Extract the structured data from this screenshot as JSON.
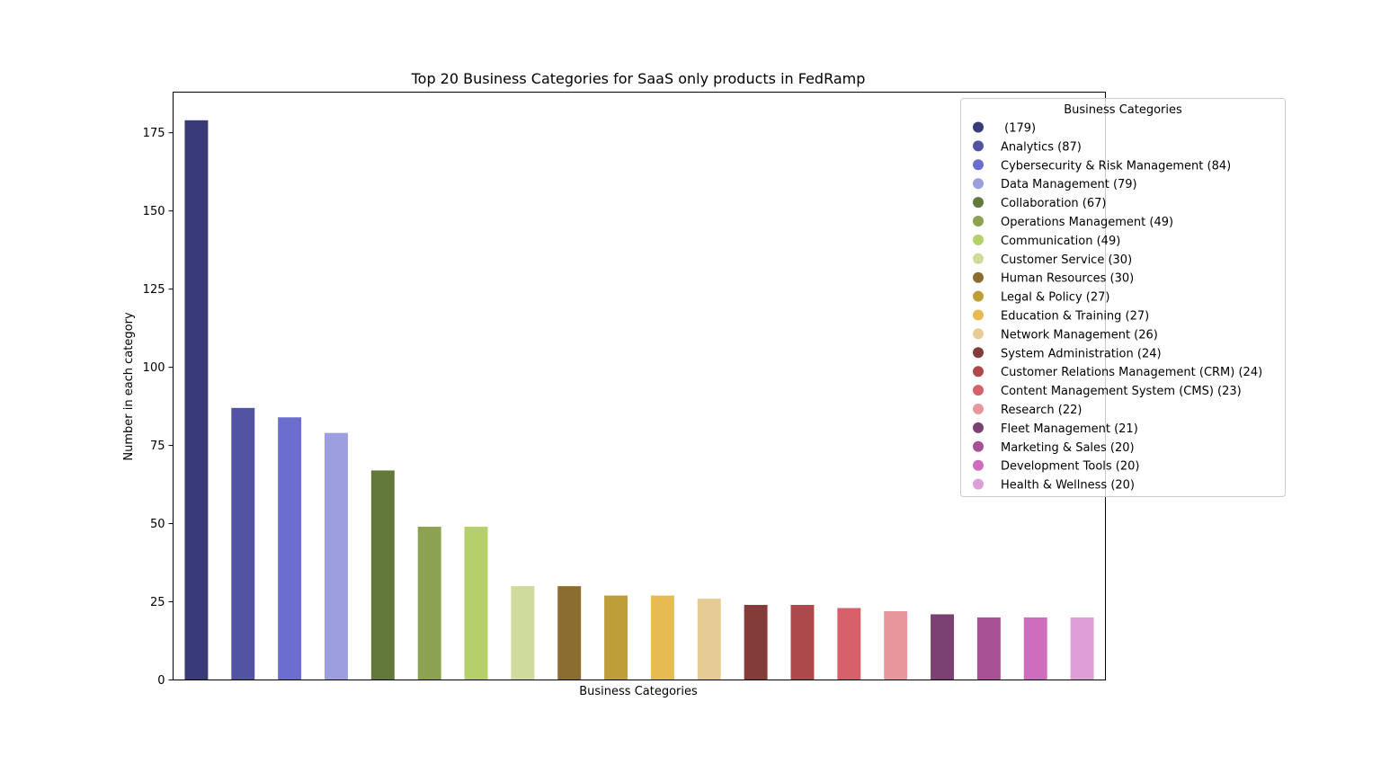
{
  "chart_data": {
    "type": "bar",
    "title": "Top 20 Business Categories for SaaS only products in FedRamp",
    "xlabel": "Business Categories",
    "ylabel": "Number in each category",
    "ylim": [
      0,
      188
    ],
    "yticks": [
      0,
      25,
      50,
      75,
      100,
      125,
      150,
      175
    ],
    "grid": false,
    "legend": {
      "title": "Business Categories",
      "placement": "top-right",
      "marker": "circle"
    },
    "categories": [
      "",
      "Analytics",
      "Cybersecurity & Risk Management",
      "Data Management",
      "Collaboration",
      "Operations Management",
      "Communication",
      "Customer Service",
      "Human Resources",
      "Legal & Policy",
      "Education & Training",
      "Network Management",
      "System Administration",
      "Customer Relations Management (CRM)",
      "Content Management System (CMS)",
      "Research",
      "Fleet Management",
      "Marketing & Sales",
      "Development Tools",
      "Health & Wellness"
    ],
    "values": [
      179,
      87,
      84,
      79,
      67,
      49,
      49,
      30,
      30,
      27,
      27,
      26,
      24,
      24,
      23,
      22,
      21,
      20,
      20,
      20
    ],
    "legend_labels": [
      " (179)",
      "Analytics (87)",
      "Cybersecurity & Risk Management (84)",
      "Data Management (79)",
      "Collaboration (67)",
      "Operations Management (49)",
      "Communication (49)",
      "Customer Service (30)",
      "Human Resources (30)",
      "Legal & Policy (27)",
      "Education & Training (27)",
      "Network Management (26)",
      "System Administration (24)",
      "Customer Relations Management (CRM) (24)",
      "Content Management System (CMS) (23)",
      "Research (22)",
      "Fleet Management (21)",
      "Marketing & Sales (20)",
      "Development Tools (20)",
      "Health & Wellness (20)"
    ],
    "colors": [
      "#393b79",
      "#5254a3",
      "#6b6ecf",
      "#9c9ede",
      "#637939",
      "#8ca252",
      "#b5cf6b",
      "#cedb9c",
      "#8c6d31",
      "#bd9e39",
      "#e7ba52",
      "#e7cb94",
      "#843c39",
      "#ad494a",
      "#d6616b",
      "#e7969c",
      "#7b4173",
      "#a55194",
      "#ce6dbd",
      "#de9ed6"
    ]
  }
}
